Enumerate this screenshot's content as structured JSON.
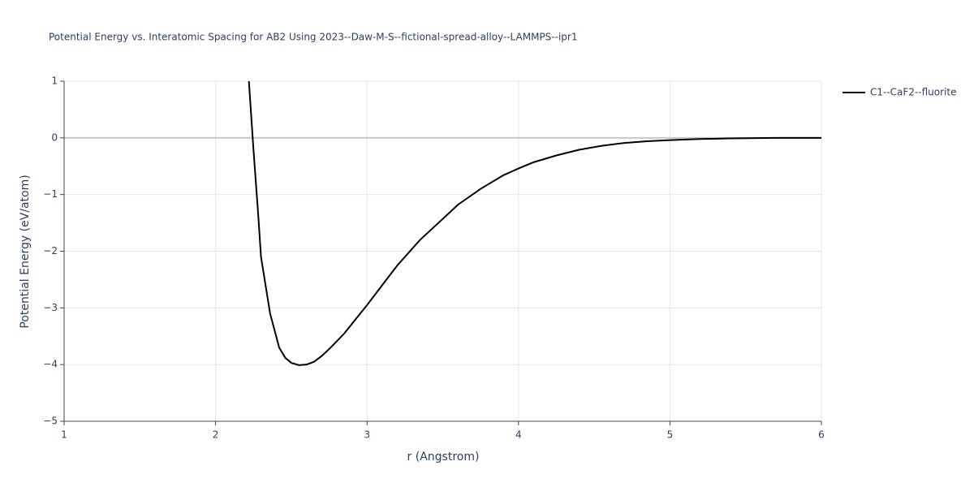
{
  "chart_data": {
    "type": "line",
    "title": "Potential Energy vs. Interatomic Spacing for AB2 Using 2023--Daw-M-S--fictional-spread-alloy--LAMMPS--ipr1",
    "x_label": "r (Angstrom)",
    "y_label": "Potential Energy (eV/atom)",
    "xlim": [
      1,
      6
    ],
    "xticks": [
      1,
      2,
      3,
      4,
      5,
      6
    ],
    "ylim": [
      -5,
      1
    ],
    "yticks": [
      {
        "value": -5,
        "label": "−5"
      },
      {
        "value": -4,
        "label": "−4"
      },
      {
        "value": -3,
        "label": "−3"
      },
      {
        "value": -2,
        "label": "−2"
      },
      {
        "value": -1,
        "label": "−1"
      },
      0,
      1
    ],
    "grid": true,
    "legend_position": "top-right",
    "x": [
      2.22,
      2.25,
      2.28,
      2.3,
      2.33,
      2.36,
      2.39,
      2.42,
      2.46,
      2.5,
      2.55,
      2.6,
      2.65,
      2.7,
      2.76,
      2.85,
      3.0,
      3.1,
      3.2,
      3.35,
      3.5,
      3.6,
      3.75,
      3.9,
      4.0,
      4.1,
      4.25,
      4.4,
      4.55,
      4.7,
      4.85,
      5.0,
      5.2,
      5.4,
      5.7,
      6.0
    ],
    "series": [
      {
        "name": "C1--CaF2--fluorite",
        "color": "#000000",
        "values": [
          1.0,
          -0.2,
          -1.3,
          -2.1,
          -2.6,
          -3.1,
          -3.4,
          -3.7,
          -3.88,
          -3.97,
          -4.01,
          -4.0,
          -3.95,
          -3.85,
          -3.7,
          -3.45,
          -2.95,
          -2.6,
          -2.25,
          -1.8,
          -1.43,
          -1.18,
          -0.9,
          -0.66,
          -0.54,
          -0.43,
          -0.31,
          -0.21,
          -0.14,
          -0.09,
          -0.06,
          -0.04,
          -0.02,
          -0.01,
          0.0,
          0.0
        ]
      }
    ]
  }
}
